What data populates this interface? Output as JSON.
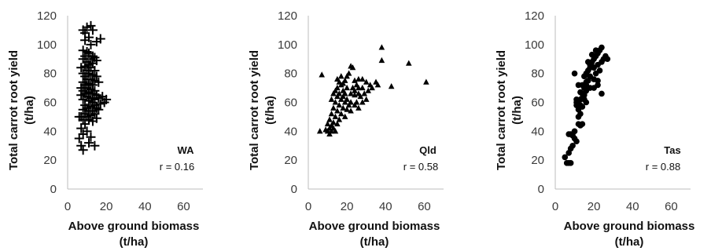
{
  "chart_data": [
    {
      "type": "scatter",
      "marker": "plus",
      "region": "WA",
      "correlation": "r = 0.16",
      "xlabel": [
        "Above ground biomass",
        "(t/ha)"
      ],
      "ylabel": [
        "Total carrot root yield",
        "(t/ha)"
      ],
      "xlim": [
        0,
        70
      ],
      "ylim": [
        0,
        120
      ],
      "xticks": [
        "0",
        "20",
        "40",
        "60"
      ],
      "yticks": [
        "0",
        "20",
        "40",
        "60",
        "80",
        "100",
        "120"
      ],
      "grid": false,
      "points": [
        [
          8,
          110
        ],
        [
          9,
          108
        ],
        [
          10,
          112
        ],
        [
          11,
          105
        ],
        [
          12,
          113
        ],
        [
          13,
          110
        ],
        [
          9,
          103
        ],
        [
          15,
          102
        ],
        [
          17,
          104
        ],
        [
          12,
          100
        ],
        [
          8,
          96
        ],
        [
          10,
          95
        ],
        [
          11,
          94
        ],
        [
          9,
          92
        ],
        [
          13,
          92
        ],
        [
          8,
          90
        ],
        [
          12,
          90
        ],
        [
          14,
          91
        ],
        [
          10,
          88
        ],
        [
          11,
          86
        ],
        [
          9,
          85
        ],
        [
          13,
          87
        ],
        [
          15,
          89
        ],
        [
          7,
          84
        ],
        [
          12,
          84
        ],
        [
          10,
          82
        ],
        [
          14,
          82
        ],
        [
          8,
          80
        ],
        [
          11,
          80
        ],
        [
          13,
          79
        ],
        [
          9,
          78
        ],
        [
          15,
          78
        ],
        [
          10,
          76
        ],
        [
          12,
          76
        ],
        [
          14,
          75
        ],
        [
          8,
          74
        ],
        [
          11,
          73
        ],
        [
          13,
          72
        ],
        [
          16,
          74
        ],
        [
          9,
          72
        ],
        [
          7,
          70
        ],
        [
          10,
          70
        ],
        [
          12,
          69
        ],
        [
          14,
          68
        ],
        [
          8,
          68
        ],
        [
          11,
          67
        ],
        [
          9,
          66
        ],
        [
          13,
          66
        ],
        [
          15,
          65
        ],
        [
          7,
          65
        ],
        [
          10,
          64
        ],
        [
          12,
          63
        ],
        [
          14,
          62
        ],
        [
          16,
          63
        ],
        [
          18,
          64
        ],
        [
          20,
          62
        ],
        [
          19,
          60
        ],
        [
          8,
          62
        ],
        [
          11,
          61
        ],
        [
          13,
          60
        ],
        [
          9,
          58
        ],
        [
          12,
          57
        ],
        [
          14,
          58
        ],
        [
          17,
          59
        ],
        [
          10,
          56
        ],
        [
          15,
          56
        ],
        [
          8,
          55
        ],
        [
          11,
          54
        ],
        [
          13,
          54
        ],
        [
          16,
          55
        ],
        [
          9,
          52
        ],
        [
          12,
          51
        ],
        [
          14,
          52
        ],
        [
          10,
          50
        ],
        [
          7,
          50
        ],
        [
          15,
          49
        ],
        [
          11,
          48
        ],
        [
          8,
          48
        ],
        [
          13,
          47
        ],
        [
          6,
          50
        ],
        [
          9,
          45
        ],
        [
          7,
          42
        ],
        [
          10,
          40
        ],
        [
          8,
          38
        ],
        [
          11,
          32
        ],
        [
          6,
          35
        ],
        [
          7,
          30
        ],
        [
          14,
          30
        ],
        [
          8,
          27
        ],
        [
          12,
          36
        ]
      ]
    },
    {
      "type": "scatter",
      "marker": "triangle",
      "region": "Qld",
      "correlation": "r = 0.58",
      "xlabel": [
        "Above ground biomass",
        "(t/ha)"
      ],
      "ylabel": [
        "Total carrot root yield",
        "(t/ha)"
      ],
      "xlim": [
        0,
        70
      ],
      "ylim": [
        0,
        120
      ],
      "xticks": [
        "0",
        "20",
        "40",
        "60"
      ],
      "yticks": [
        "0",
        "20",
        "40",
        "60",
        "80",
        "100",
        "120"
      ],
      "grid": false,
      "points": [
        [
          38,
          98
        ],
        [
          38,
          89
        ],
        [
          52,
          87
        ],
        [
          61,
          74
        ],
        [
          43,
          71
        ],
        [
          35,
          74
        ],
        [
          32,
          72
        ],
        [
          30,
          74
        ],
        [
          28,
          76
        ],
        [
          26,
          70
        ],
        [
          25,
          72
        ],
        [
          24,
          65
        ],
        [
          27,
          64
        ],
        [
          29,
          66
        ],
        [
          31,
          68
        ],
        [
          22,
          85
        ],
        [
          23,
          84
        ],
        [
          21,
          80
        ],
        [
          20,
          78
        ],
        [
          19,
          75
        ],
        [
          18,
          73
        ],
        [
          17,
          72
        ],
        [
          16,
          74
        ],
        [
          15,
          70
        ],
        [
          14,
          68
        ],
        [
          16,
          66
        ],
        [
          18,
          64
        ],
        [
          20,
          62
        ],
        [
          22,
          60
        ],
        [
          24,
          58
        ],
        [
          26,
          56
        ],
        [
          21,
          58
        ],
        [
          19,
          60
        ],
        [
          17,
          62
        ],
        [
          15,
          64
        ],
        [
          13,
          66
        ],
        [
          12,
          62
        ],
        [
          14,
          60
        ],
        [
          16,
          58
        ],
        [
          18,
          56
        ],
        [
          20,
          55
        ],
        [
          22,
          54
        ],
        [
          13,
          56
        ],
        [
          15,
          54
        ],
        [
          17,
          52
        ],
        [
          19,
          50
        ],
        [
          12,
          52
        ],
        [
          14,
          50
        ],
        [
          16,
          48
        ],
        [
          11,
          48
        ],
        [
          13,
          46
        ],
        [
          15,
          45
        ],
        [
          12,
          44
        ],
        [
          10,
          45
        ],
        [
          11,
          42
        ],
        [
          13,
          42
        ],
        [
          14,
          40
        ],
        [
          10,
          40
        ],
        [
          12,
          40
        ],
        [
          11,
          38
        ],
        [
          9,
          41
        ],
        [
          6,
          40
        ],
        [
          7,
          79
        ],
        [
          23,
          70
        ],
        [
          25,
          60
        ],
        [
          28,
          60
        ],
        [
          18,
          68
        ],
        [
          20,
          70
        ],
        [
          22,
          66
        ],
        [
          24,
          68
        ],
        [
          26,
          66
        ],
        [
          28,
          70
        ],
        [
          30,
          62
        ],
        [
          33,
          70
        ],
        [
          36,
          72
        ],
        [
          24,
          75
        ],
        [
          26,
          76
        ],
        [
          19,
          66
        ],
        [
          17,
          78
        ],
        [
          15,
          76
        ]
      ]
    },
    {
      "type": "scatter",
      "marker": "circle",
      "region": "Tas",
      "correlation": "r = 0.88",
      "xlabel": [
        "Above ground biomass",
        "(t/ha)"
      ],
      "ylabel": [
        "Total carrot root yield",
        "(t/ha)"
      ],
      "xlim": [
        0,
        70
      ],
      "ylim": [
        0,
        120
      ],
      "xticks": [
        "0",
        "20",
        "40",
        "60"
      ],
      "yticks": [
        "0",
        "20",
        "40",
        "60",
        "80",
        "100",
        "120"
      ],
      "grid": false,
      "points": [
        [
          5,
          22
        ],
        [
          6,
          18
        ],
        [
          7,
          18
        ],
        [
          8,
          18
        ],
        [
          7,
          25
        ],
        [
          8,
          28
        ],
        [
          9,
          30
        ],
        [
          10,
          35
        ],
        [
          7,
          38
        ],
        [
          8,
          38
        ],
        [
          9,
          37
        ],
        [
          11,
          33
        ],
        [
          10,
          40
        ],
        [
          12,
          45
        ],
        [
          13,
          44
        ],
        [
          14,
          45
        ],
        [
          12,
          55
        ],
        [
          13,
          52
        ],
        [
          14,
          57
        ],
        [
          11,
          58
        ],
        [
          12,
          60
        ],
        [
          13,
          62
        ],
        [
          14,
          63
        ],
        [
          15,
          65
        ],
        [
          11,
          60
        ],
        [
          16,
          68
        ],
        [
          15,
          70
        ],
        [
          14,
          72
        ],
        [
          16,
          74
        ],
        [
          17,
          75
        ],
        [
          13,
          67
        ],
        [
          12,
          72
        ],
        [
          15,
          78
        ],
        [
          16,
          80
        ],
        [
          17,
          82
        ],
        [
          18,
          84
        ],
        [
          16,
          72
        ],
        [
          18,
          86
        ],
        [
          19,
          88
        ],
        [
          20,
          90
        ],
        [
          21,
          92
        ],
        [
          22,
          94
        ],
        [
          23,
          96
        ],
        [
          24,
          98
        ],
        [
          19,
          85
        ],
        [
          20,
          84
        ],
        [
          22,
          86
        ],
        [
          24,
          88
        ],
        [
          25,
          90
        ],
        [
          23,
          82
        ],
        [
          21,
          80
        ],
        [
          20,
          76
        ],
        [
          18,
          78
        ],
        [
          22,
          72
        ],
        [
          24,
          66
        ],
        [
          20,
          70
        ],
        [
          26,
          92
        ],
        [
          27,
          90
        ],
        [
          10,
          80
        ],
        [
          19,
          93
        ],
        [
          21,
          96
        ],
        [
          17,
          88
        ],
        [
          15,
          62
        ],
        [
          14,
          66
        ],
        [
          13,
          58
        ],
        [
          12,
          50
        ],
        [
          11,
          62
        ],
        [
          16,
          60
        ],
        [
          18,
          70
        ],
        [
          22,
          75
        ]
      ]
    }
  ]
}
